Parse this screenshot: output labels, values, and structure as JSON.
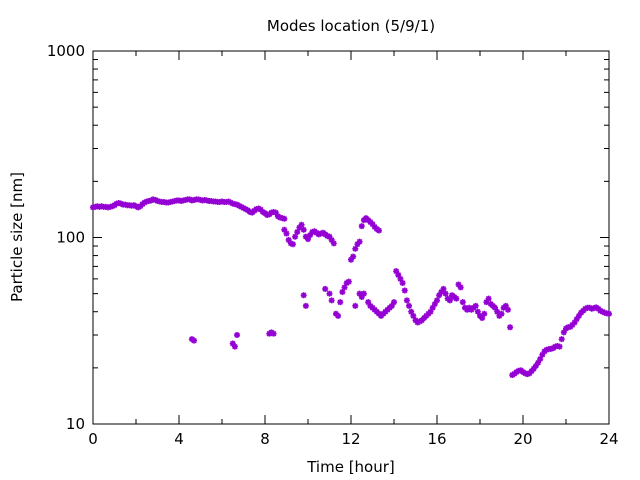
{
  "chart_data": {
    "type": "scatter",
    "title": "Modes location (5/9/1)",
    "xlabel": "Time [hour]",
    "ylabel": "Particle size [nm]",
    "xlim": [
      0,
      24
    ],
    "ylim": [
      10,
      1000
    ],
    "y_scale": "log",
    "grid": false,
    "legend": "none",
    "x_ticks": [
      0,
      4,
      8,
      12,
      16,
      20,
      24
    ],
    "y_ticks": [
      10,
      100,
      1000
    ],
    "marker_color": "#9400d3",
    "series": [
      {
        "points": [
          [
            0.0,
            145
          ],
          [
            0.1,
            146
          ],
          [
            0.2,
            147
          ],
          [
            0.3,
            146
          ],
          [
            0.4,
            147
          ],
          [
            0.5,
            146
          ],
          [
            0.6,
            146
          ],
          [
            0.7,
            145
          ],
          [
            0.8,
            146
          ],
          [
            0.9,
            147
          ],
          [
            1.0,
            149
          ],
          [
            1.1,
            152
          ],
          [
            1.2,
            153
          ],
          [
            1.3,
            152
          ],
          [
            1.4,
            150
          ],
          [
            1.5,
            150
          ],
          [
            1.6,
            149
          ],
          [
            1.7,
            149
          ],
          [
            1.8,
            148
          ],
          [
            1.9,
            149
          ],
          [
            2.0,
            147
          ],
          [
            2.1,
            145
          ],
          [
            2.2,
            147
          ],
          [
            2.3,
            151
          ],
          [
            2.4,
            154
          ],
          [
            2.5,
            156
          ],
          [
            2.6,
            157
          ],
          [
            2.7,
            158
          ],
          [
            2.8,
            160
          ],
          [
            2.9,
            159
          ],
          [
            3.0,
            157
          ],
          [
            3.1,
            156
          ],
          [
            3.2,
            155
          ],
          [
            3.3,
            155
          ],
          [
            3.4,
            154
          ],
          [
            3.5,
            154
          ],
          [
            3.6,
            155
          ],
          [
            3.7,
            156
          ],
          [
            3.8,
            157
          ],
          [
            3.9,
            158
          ],
          [
            4.0,
            158
          ],
          [
            4.1,
            157
          ],
          [
            4.2,
            158
          ],
          [
            4.3,
            159
          ],
          [
            4.4,
            160
          ],
          [
            4.5,
            160
          ],
          [
            4.6,
            158
          ],
          [
            4.7,
            159
          ],
          [
            4.8,
            160
          ],
          [
            4.9,
            160
          ],
          [
            5.0,
            159
          ],
          [
            5.1,
            158
          ],
          [
            5.2,
            159
          ],
          [
            5.3,
            158
          ],
          [
            5.4,
            157
          ],
          [
            5.5,
            157
          ],
          [
            5.6,
            156
          ],
          [
            5.7,
            156
          ],
          [
            5.8,
            155
          ],
          [
            5.9,
            155
          ],
          [
            6.0,
            156
          ],
          [
            6.1,
            155
          ],
          [
            6.2,
            155
          ],
          [
            6.3,
            156
          ],
          [
            6.4,
            154
          ],
          [
            6.5,
            152
          ],
          [
            6.6,
            151
          ],
          [
            6.7,
            150
          ],
          [
            6.8,
            148
          ],
          [
            6.9,
            146
          ],
          [
            7.0,
            144
          ],
          [
            7.1,
            142
          ],
          [
            7.2,
            140
          ],
          [
            7.3,
            137
          ],
          [
            7.4,
            136
          ],
          [
            7.5,
            139
          ],
          [
            7.6,
            142
          ],
          [
            7.7,
            143
          ],
          [
            7.8,
            141
          ],
          [
            7.9,
            137
          ],
          [
            8.0,
            135
          ],
          [
            8.1,
            132
          ],
          [
            8.2,
            133
          ],
          [
            8.3,
            136
          ],
          [
            8.4,
            137
          ],
          [
            8.5,
            136
          ],
          [
            8.6,
            130
          ],
          [
            8.7,
            128
          ],
          [
            8.8,
            127
          ],
          [
            8.9,
            126
          ],
          [
            8.9,
            110
          ],
          [
            9.0,
            105
          ],
          [
            9.1,
            97
          ],
          [
            9.2,
            93
          ],
          [
            9.3,
            92
          ],
          [
            9.4,
            101
          ],
          [
            9.5,
            107
          ],
          [
            9.6,
            113
          ],
          [
            9.7,
            117
          ],
          [
            9.8,
            110
          ],
          [
            9.9,
            101
          ],
          [
            10.0,
            98
          ],
          [
            10.1,
            103
          ],
          [
            10.2,
            107
          ],
          [
            10.3,
            108
          ],
          [
            10.4,
            106
          ],
          [
            10.5,
            104
          ],
          [
            10.6,
            105
          ],
          [
            10.7,
            106
          ],
          [
            10.8,
            104
          ],
          [
            10.9,
            102
          ],
          [
            11.0,
            101
          ],
          [
            11.1,
            97
          ],
          [
            11.2,
            93
          ],
          [
            12.0,
            76
          ],
          [
            12.1,
            79
          ],
          [
            12.2,
            87
          ],
          [
            12.3,
            92
          ],
          [
            12.4,
            95
          ],
          [
            12.5,
            115
          ],
          [
            12.6,
            124
          ],
          [
            12.7,
            127
          ],
          [
            12.8,
            124
          ],
          [
            12.9,
            121
          ],
          [
            13.0,
            118
          ],
          [
            13.1,
            114
          ],
          [
            13.2,
            111
          ],
          [
            13.3,
            109
          ],
          [
            4.6,
            28.5
          ],
          [
            4.7,
            28.0
          ],
          [
            6.5,
            27.0
          ],
          [
            6.6,
            26.0
          ],
          [
            6.7,
            30.0
          ],
          [
            8.2,
            30.5
          ],
          [
            8.3,
            31.0
          ],
          [
            8.4,
            30.5
          ],
          [
            9.8,
            49
          ],
          [
            9.9,
            43
          ],
          [
            10.8,
            53
          ],
          [
            11.0,
            50
          ],
          [
            11.1,
            46
          ],
          [
            11.3,
            39
          ],
          [
            11.4,
            38
          ],
          [
            11.5,
            45
          ],
          [
            11.6,
            51
          ],
          [
            11.7,
            54
          ],
          [
            11.8,
            57
          ],
          [
            11.9,
            58
          ],
          [
            12.2,
            43
          ],
          [
            12.4,
            50
          ],
          [
            12.5,
            48
          ],
          [
            12.6,
            50
          ],
          [
            12.8,
            45
          ],
          [
            12.9,
            43
          ],
          [
            13.0,
            42
          ],
          [
            13.1,
            41
          ],
          [
            13.2,
            40
          ],
          [
            13.3,
            39
          ],
          [
            13.4,
            38
          ],
          [
            13.5,
            39
          ],
          [
            13.6,
            40
          ],
          [
            13.7,
            41
          ],
          [
            13.8,
            42
          ],
          [
            13.9,
            43
          ],
          [
            14.0,
            45
          ],
          [
            14.1,
            66
          ],
          [
            14.2,
            63
          ],
          [
            14.3,
            60
          ],
          [
            14.4,
            57
          ],
          [
            14.5,
            52
          ],
          [
            14.6,
            46
          ],
          [
            14.7,
            43
          ],
          [
            14.8,
            40
          ],
          [
            14.9,
            38
          ],
          [
            15.0,
            36
          ],
          [
            15.1,
            35
          ],
          [
            15.2,
            35.5
          ],
          [
            15.3,
            36
          ],
          [
            15.4,
            37
          ],
          [
            15.5,
            38
          ],
          [
            15.6,
            39
          ],
          [
            15.7,
            40
          ],
          [
            15.8,
            42
          ],
          [
            15.9,
            44
          ],
          [
            16.0,
            46
          ],
          [
            16.1,
            49
          ],
          [
            16.2,
            51
          ],
          [
            16.3,
            53
          ],
          [
            16.4,
            50
          ],
          [
            16.5,
            47
          ],
          [
            16.6,
            46
          ],
          [
            16.7,
            49
          ],
          [
            16.8,
            48
          ],
          [
            16.9,
            47
          ],
          [
            17.0,
            56
          ],
          [
            17.1,
            54
          ],
          [
            17.2,
            45
          ],
          [
            17.3,
            42
          ],
          [
            17.4,
            41
          ],
          [
            17.5,
            42
          ],
          [
            17.6,
            41
          ],
          [
            17.7,
            42
          ],
          [
            17.8,
            43
          ],
          [
            17.9,
            40
          ],
          [
            18.0,
            38
          ],
          [
            18.1,
            37
          ],
          [
            18.2,
            39
          ],
          [
            18.3,
            45
          ],
          [
            18.4,
            47
          ],
          [
            18.5,
            44
          ],
          [
            18.6,
            43
          ],
          [
            18.7,
            42
          ],
          [
            18.8,
            40
          ],
          [
            18.9,
            38
          ],
          [
            19.0,
            39
          ],
          [
            19.1,
            42
          ],
          [
            19.2,
            43
          ],
          [
            19.3,
            41
          ],
          [
            19.4,
            33
          ],
          [
            19.5,
            18.3
          ],
          [
            19.6,
            18.6
          ],
          [
            19.7,
            19.0
          ],
          [
            19.8,
            19.3
          ],
          [
            19.9,
            19.4
          ],
          [
            20.0,
            19.0
          ],
          [
            20.1,
            18.7
          ],
          [
            20.2,
            18.5
          ],
          [
            20.3,
            18.7
          ],
          [
            20.4,
            19.2
          ],
          [
            20.5,
            19.8
          ],
          [
            20.6,
            20.5
          ],
          [
            20.7,
            21.3
          ],
          [
            20.8,
            22.3
          ],
          [
            20.9,
            23.5
          ],
          [
            21.0,
            24.5
          ],
          [
            21.1,
            25.0
          ],
          [
            21.2,
            25.2
          ],
          [
            21.3,
            25.3
          ],
          [
            21.4,
            25.5
          ],
          [
            21.5,
            26.0
          ],
          [
            21.6,
            26.2
          ],
          [
            21.7,
            26.0
          ],
          [
            21.8,
            28.5
          ],
          [
            21.9,
            31.0
          ],
          [
            22.0,
            32.5
          ],
          [
            22.1,
            33.0
          ],
          [
            22.2,
            33.2
          ],
          [
            22.3,
            34.0
          ],
          [
            22.4,
            35.0
          ],
          [
            22.5,
            36.5
          ],
          [
            22.6,
            38.0
          ],
          [
            22.7,
            39.5
          ],
          [
            22.8,
            40.5
          ],
          [
            22.9,
            41.5
          ],
          [
            23.0,
            42.0
          ],
          [
            23.1,
            42.0
          ],
          [
            23.2,
            41.5
          ],
          [
            23.3,
            41.8
          ],
          [
            23.4,
            42.2
          ],
          [
            23.5,
            41.5
          ],
          [
            23.6,
            40.5
          ],
          [
            23.7,
            40.0
          ],
          [
            23.8,
            39.5
          ],
          [
            23.9,
            39.2
          ],
          [
            24.0,
            39.0
          ]
        ]
      }
    ]
  }
}
